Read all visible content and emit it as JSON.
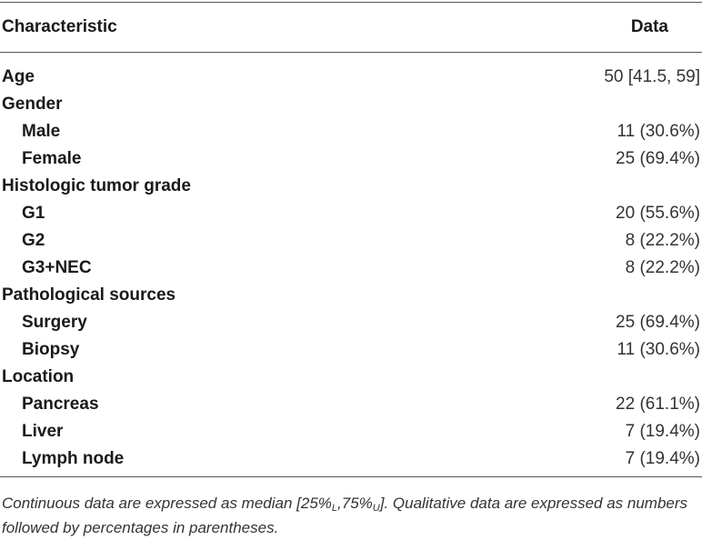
{
  "header": {
    "characteristic": "Characteristic",
    "data": "Data"
  },
  "rows": [
    {
      "label": "Age",
      "level": 0,
      "value": "50 [41.5, 59]"
    },
    {
      "label": "Gender",
      "level": 0,
      "value": ""
    },
    {
      "label": "Male",
      "level": 1,
      "value": "11 (30.6%)"
    },
    {
      "label": "Female",
      "level": 1,
      "value": "25 (69.4%)"
    },
    {
      "label": "Histologic tumor grade",
      "level": 0,
      "value": ""
    },
    {
      "label": "G1",
      "level": 1,
      "value": "20 (55.6%)"
    },
    {
      "label": "G2",
      "level": 1,
      "value": "8 (22.2%)"
    },
    {
      "label": "G3+NEC",
      "level": 1,
      "value": "8 (22.2%)"
    },
    {
      "label": "Pathological sources",
      "level": 0,
      "value": ""
    },
    {
      "label": "Surgery",
      "level": 1,
      "value": "25 (69.4%)"
    },
    {
      "label": "Biopsy",
      "level": 1,
      "value": "11 (30.6%)"
    },
    {
      "label": "Location",
      "level": 0,
      "value": ""
    },
    {
      "label": "Pancreas",
      "level": 1,
      "value": "22 (61.1%)"
    },
    {
      "label": "Liver",
      "level": 1,
      "value": "7 (19.4%)"
    },
    {
      "label": "Lymph node",
      "level": 1,
      "value": "7 (19.4%)"
    }
  ],
  "footnote": {
    "prefix": "Continuous data are expressed as median [25%",
    "sub_lower": "L",
    "middle": ",75%",
    "sub_upper": "U",
    "suffix": "]. Qualitative data are expressed as numbers followed by percentages in parentheses."
  }
}
